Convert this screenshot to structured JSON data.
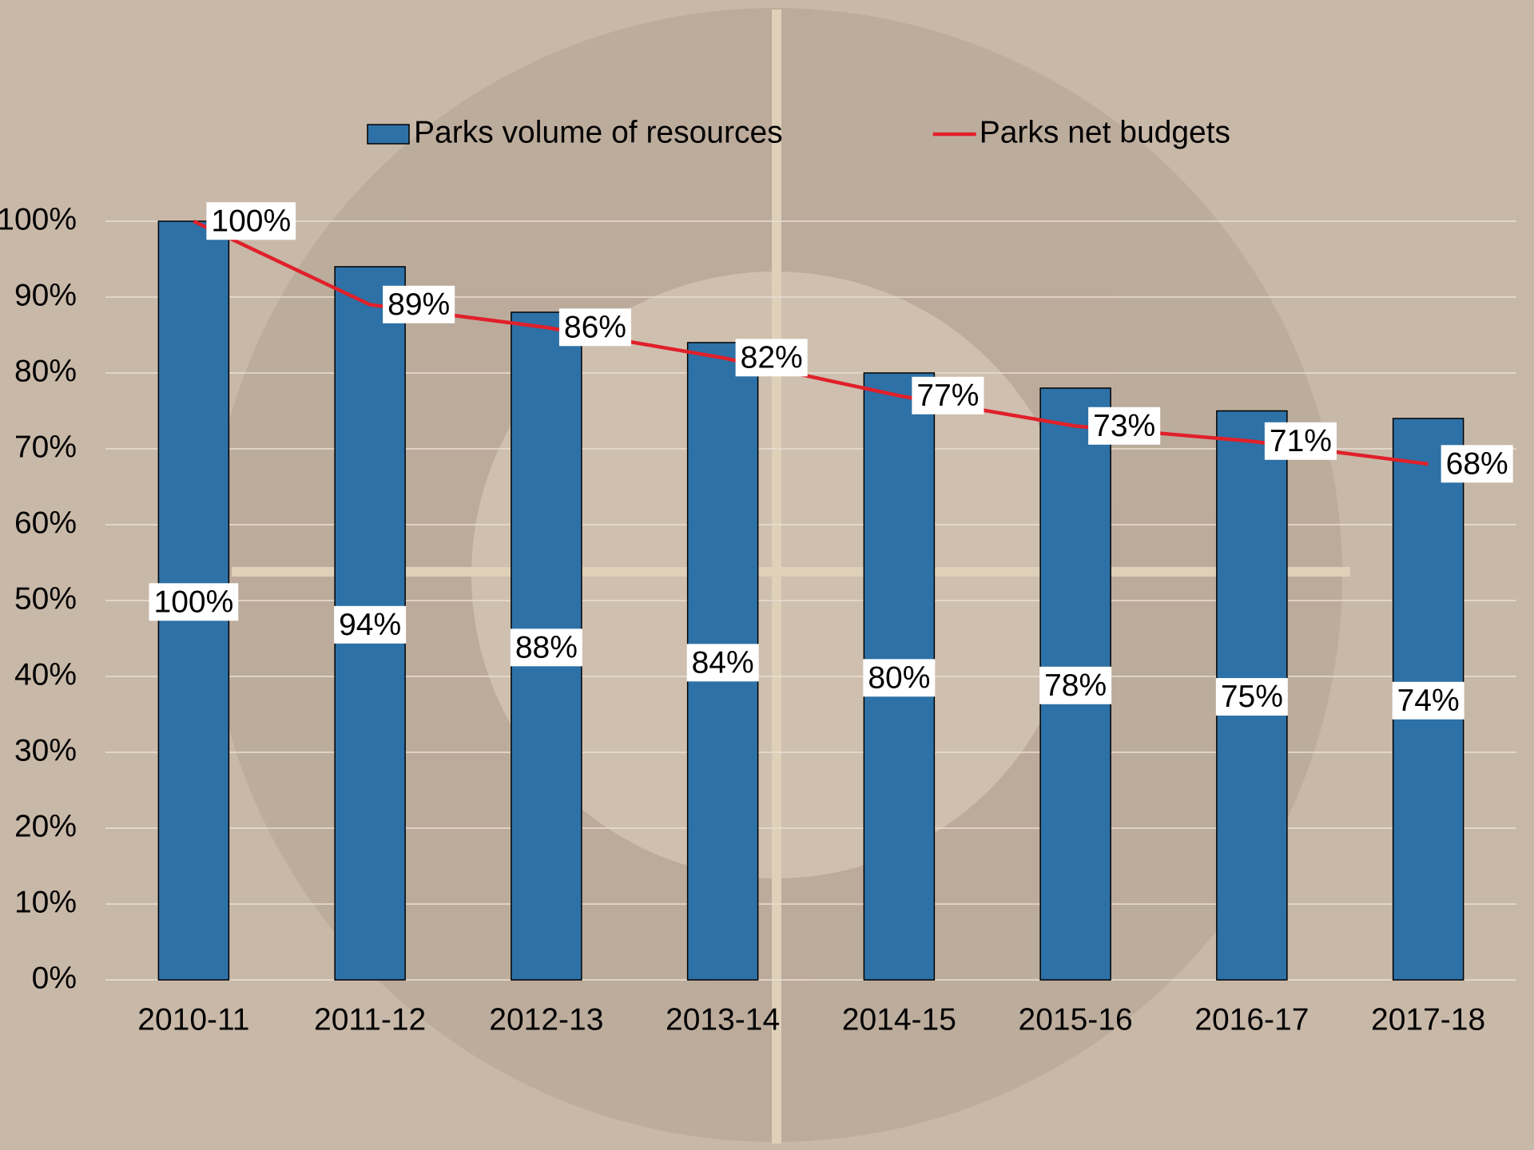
{
  "chart_data": {
    "type": "bar",
    "categories": [
      "2010-11",
      "2011-12",
      "2012-13",
      "2013-14",
      "2014-15",
      "2015-16",
      "2016-17",
      "2017-18"
    ],
    "series": [
      {
        "name": "Parks volume of resources",
        "type": "bar",
        "color": "#2e71a6",
        "values": [
          100,
          94,
          88,
          84,
          80,
          78,
          75,
          74
        ],
        "value_labels": [
          "100%",
          "94%",
          "88%",
          "84%",
          "80%",
          "78%",
          "75%",
          "74%"
        ]
      },
      {
        "name": "Parks net budgets",
        "type": "line",
        "color": "#e0202a",
        "values": [
          100,
          89,
          86,
          82,
          77,
          73,
          71,
          68
        ],
        "value_labels": [
          "100%",
          "89%",
          "86%",
          "82%",
          "77%",
          "73%",
          "71%",
          "68%"
        ]
      }
    ],
    "ylim": [
      0,
      100
    ],
    "yticks": [
      {
        "value": 0,
        "label": "0%"
      },
      {
        "value": 10,
        "label": "10%"
      },
      {
        "value": 20,
        "label": "20%"
      },
      {
        "value": 30,
        "label": "30%"
      },
      {
        "value": 40,
        "label": "40%"
      },
      {
        "value": 50,
        "label": "50%"
      },
      {
        "value": 60,
        "label": "60%"
      },
      {
        "value": 70,
        "label": "70%"
      },
      {
        "value": 80,
        "label": "80%"
      },
      {
        "value": 90,
        "label": "90%"
      },
      {
        "value": 100,
        "label": "100%"
      }
    ],
    "grid": true,
    "legend": "top"
  }
}
